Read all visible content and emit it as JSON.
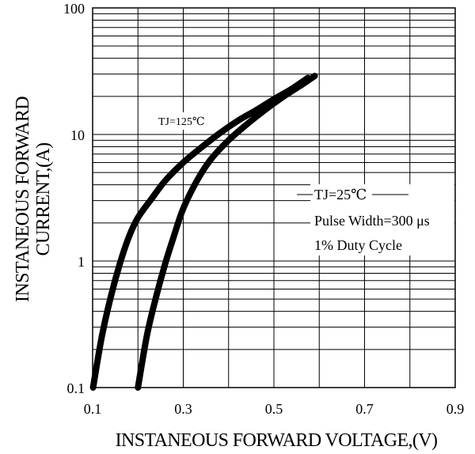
{
  "chart_data": {
    "type": "line",
    "xlabel": "INSTANEOUS FORWARD VOLTAGE,(V)",
    "ylabel_lines": [
      "INSTANEOUS FORWARD",
      "CURRENT,(A)"
    ],
    "x_scale": "linear",
    "y_scale": "log",
    "xlim": [
      0.1,
      0.9
    ],
    "ylim": [
      0.1,
      100
    ],
    "x_ticks": [
      0.1,
      0.3,
      0.5,
      0.7,
      0.9
    ],
    "x_tick_labels": [
      "0.1",
      "0.3",
      "0.5",
      "0.7",
      "0.9"
    ],
    "y_ticks": [
      0.1,
      1,
      10,
      100
    ],
    "y_tick_labels": [
      "0.1",
      "1",
      "10",
      "100"
    ],
    "grid": true,
    "series": [
      {
        "name": "TJ=125℃",
        "x": [
          0.101,
          0.12,
          0.14,
          0.16,
          0.18,
          0.2,
          0.23,
          0.26,
          0.3,
          0.34,
          0.38,
          0.42,
          0.46,
          0.5,
          0.54,
          0.575
        ],
        "y": [
          0.1,
          0.25,
          0.52,
          0.95,
          1.55,
          2.2,
          3.1,
          4.3,
          6.0,
          7.9,
          10.2,
          12.8,
          15.5,
          19.0,
          23.0,
          28.0
        ]
      },
      {
        "name": "TJ=25℃",
        "x": [
          0.2,
          0.22,
          0.24,
          0.26,
          0.28,
          0.3,
          0.33,
          0.36,
          0.4,
          0.44,
          0.48,
          0.52,
          0.56,
          0.59
        ],
        "y": [
          0.1,
          0.26,
          0.52,
          0.95,
          1.6,
          2.6,
          4.3,
          6.3,
          9.0,
          12.0,
          15.6,
          19.8,
          24.5,
          29.0
        ]
      }
    ],
    "annotations": {
      "hot_label": "TJ=125℃",
      "cold_label": "TJ=25℃",
      "pulse": "Pulse Width=300 μs",
      "duty": "1% Duty Cycle"
    }
  }
}
